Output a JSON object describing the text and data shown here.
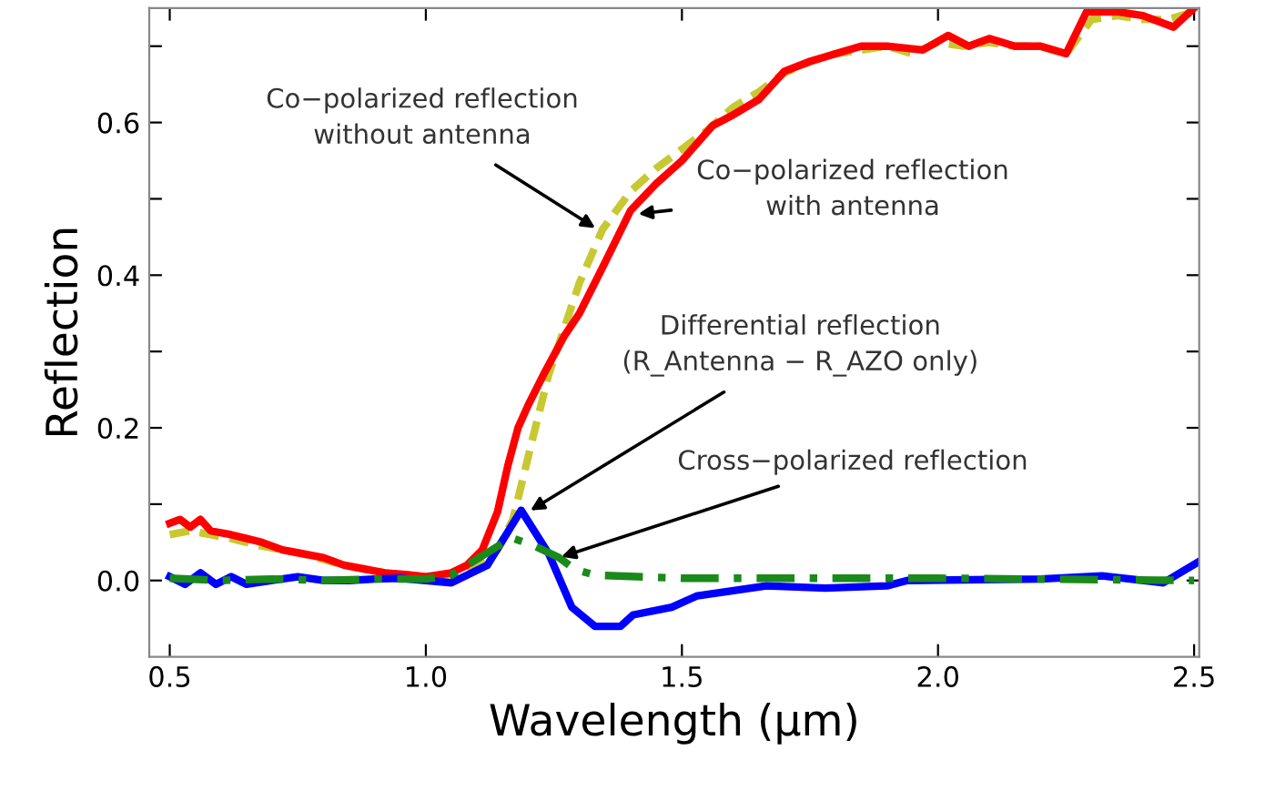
{
  "chart_data": {
    "type": "line",
    "xlabel": "Wavelength (µm)",
    "ylabel": "Reflection",
    "xlim": [
      0.46,
      2.51
    ],
    "ylim": [
      -0.1,
      0.75
    ],
    "xticks": [
      {
        "value": 0.5,
        "label": "0.5"
      },
      {
        "value": 1.0,
        "label": "1.0"
      },
      {
        "value": 1.5,
        "label": "1.5"
      },
      {
        "value": 2.0,
        "label": "2.0"
      },
      {
        "value": 2.5,
        "label": "2.5"
      }
    ],
    "yticks": [
      {
        "value": 0.0,
        "label": "0.0"
      },
      {
        "value": 0.1,
        "label": null
      },
      {
        "value": 0.2,
        "label": "0.2"
      },
      {
        "value": 0.3,
        "label": null
      },
      {
        "value": 0.4,
        "label": "0.4"
      },
      {
        "value": 0.5,
        "label": null
      },
      {
        "value": 0.6,
        "label": "0.6"
      },
      {
        "value": 0.7,
        "label": null
      }
    ],
    "grid": false,
    "legend": false,
    "marker": "none",
    "series": [
      {
        "color": "#c8c832",
        "line_style": "dashed",
        "x": [
          0.5,
          0.54,
          0.58,
          0.62,
          0.68,
          0.76,
          0.84,
          0.92,
          1.0,
          1.05,
          1.1,
          1.14,
          1.17,
          1.21,
          1.24,
          1.27,
          1.3,
          1.345,
          1.4,
          1.45,
          1.5,
          1.55,
          1.6,
          1.65,
          1.7,
          1.75,
          1.8,
          1.85,
          1.9,
          1.95,
          2.0,
          2.05,
          2.1,
          2.15,
          2.2,
          2.25,
          2.3,
          2.35,
          2.4,
          2.45,
          2.5
        ],
        "values": [
          0.06,
          0.065,
          0.06,
          0.055,
          0.045,
          0.035,
          0.02,
          0.01,
          0.005,
          0.008,
          0.02,
          0.04,
          0.08,
          0.19,
          0.27,
          0.33,
          0.39,
          0.46,
          0.51,
          0.54,
          0.565,
          0.59,
          0.62,
          0.64,
          0.665,
          0.68,
          0.69,
          0.695,
          0.7,
          0.69,
          0.705,
          0.7,
          0.705,
          0.7,
          0.7,
          0.69,
          0.735,
          0.74,
          0.735,
          0.735,
          0.745
        ]
      },
      {
        "color": "#ff0000",
        "line_style": "solid",
        "x": [
          0.5,
          0.52,
          0.54,
          0.56,
          0.58,
          0.62,
          0.65,
          0.68,
          0.72,
          0.76,
          0.8,
          0.84,
          0.88,
          0.92,
          0.96,
          1.0,
          1.05,
          1.08,
          1.11,
          1.14,
          1.16,
          1.18,
          1.2,
          1.23,
          1.27,
          1.3,
          1.345,
          1.4,
          1.45,
          1.5,
          1.56,
          1.6,
          1.65,
          1.7,
          1.75,
          1.8,
          1.85,
          1.9,
          1.97,
          2.02,
          2.06,
          2.1,
          2.15,
          2.2,
          2.25,
          2.29,
          2.35,
          2.4,
          2.46,
          2.5
        ],
        "values": [
          0.075,
          0.08,
          0.07,
          0.08,
          0.065,
          0.06,
          0.055,
          0.05,
          0.04,
          0.035,
          0.03,
          0.02,
          0.015,
          0.01,
          0.008,
          0.005,
          0.01,
          0.02,
          0.04,
          0.09,
          0.15,
          0.2,
          0.23,
          0.27,
          0.32,
          0.35,
          0.41,
          0.485,
          0.52,
          0.55,
          0.596,
          0.61,
          0.63,
          0.667,
          0.68,
          0.69,
          0.7,
          0.7,
          0.695,
          0.714,
          0.7,
          0.71,
          0.7,
          0.7,
          0.69,
          0.745,
          0.745,
          0.74,
          0.725,
          0.75
        ]
      },
      {
        "color": "#0000ff",
        "line_style": "solid",
        "x": [
          0.5,
          0.53,
          0.56,
          0.59,
          0.62,
          0.65,
          0.7,
          0.75,
          0.8,
          0.85,
          0.9,
          0.95,
          1.0,
          1.05,
          1.12,
          1.186,
          1.24,
          1.285,
          1.33,
          1.38,
          1.405,
          1.48,
          1.53,
          1.665,
          1.78,
          1.9,
          1.94,
          2.2,
          2.32,
          2.44,
          2.51
        ],
        "values": [
          0.005,
          -0.005,
          0.01,
          -0.005,
          0.005,
          -0.005,
          0.0,
          0.005,
          0.0,
          0.0,
          0.002,
          0.003,
          0.0,
          -0.003,
          0.02,
          0.092,
          0.035,
          -0.035,
          -0.06,
          -0.06,
          -0.045,
          -0.035,
          -0.02,
          -0.007,
          -0.01,
          -0.007,
          0.0,
          0.002,
          0.006,
          -0.003,
          0.025
        ]
      },
      {
        "color": "#1a8a1a",
        "line_style": "dashdot",
        "x": [
          0.5,
          0.6,
          0.7,
          0.8,
          0.9,
          1.0,
          1.05,
          1.1,
          1.167,
          1.213,
          1.26,
          1.29,
          1.33,
          1.5,
          2.0,
          2.5
        ],
        "values": [
          0.003,
          0.0,
          0.002,
          0.0,
          0.002,
          0.002,
          0.007,
          0.028,
          0.056,
          0.045,
          0.03,
          0.015,
          0.007,
          0.003,
          0.003,
          0.0
        ]
      }
    ],
    "annotations": [
      {
        "text": "Co−polarized reflection\nwithout antenna",
        "x": 1.335,
        "y": 0.46
      },
      {
        "text": "Co−polarized reflection\nwith antenna",
        "x": 1.41,
        "y": 0.48
      },
      {
        "text": "Differential reflection\n(R_Antenna − R_AZO only)",
        "x": 1.2,
        "y": 0.09
      },
      {
        "text": "Cross−polarized reflection",
        "x": 1.26,
        "y": 0.03
      }
    ]
  }
}
